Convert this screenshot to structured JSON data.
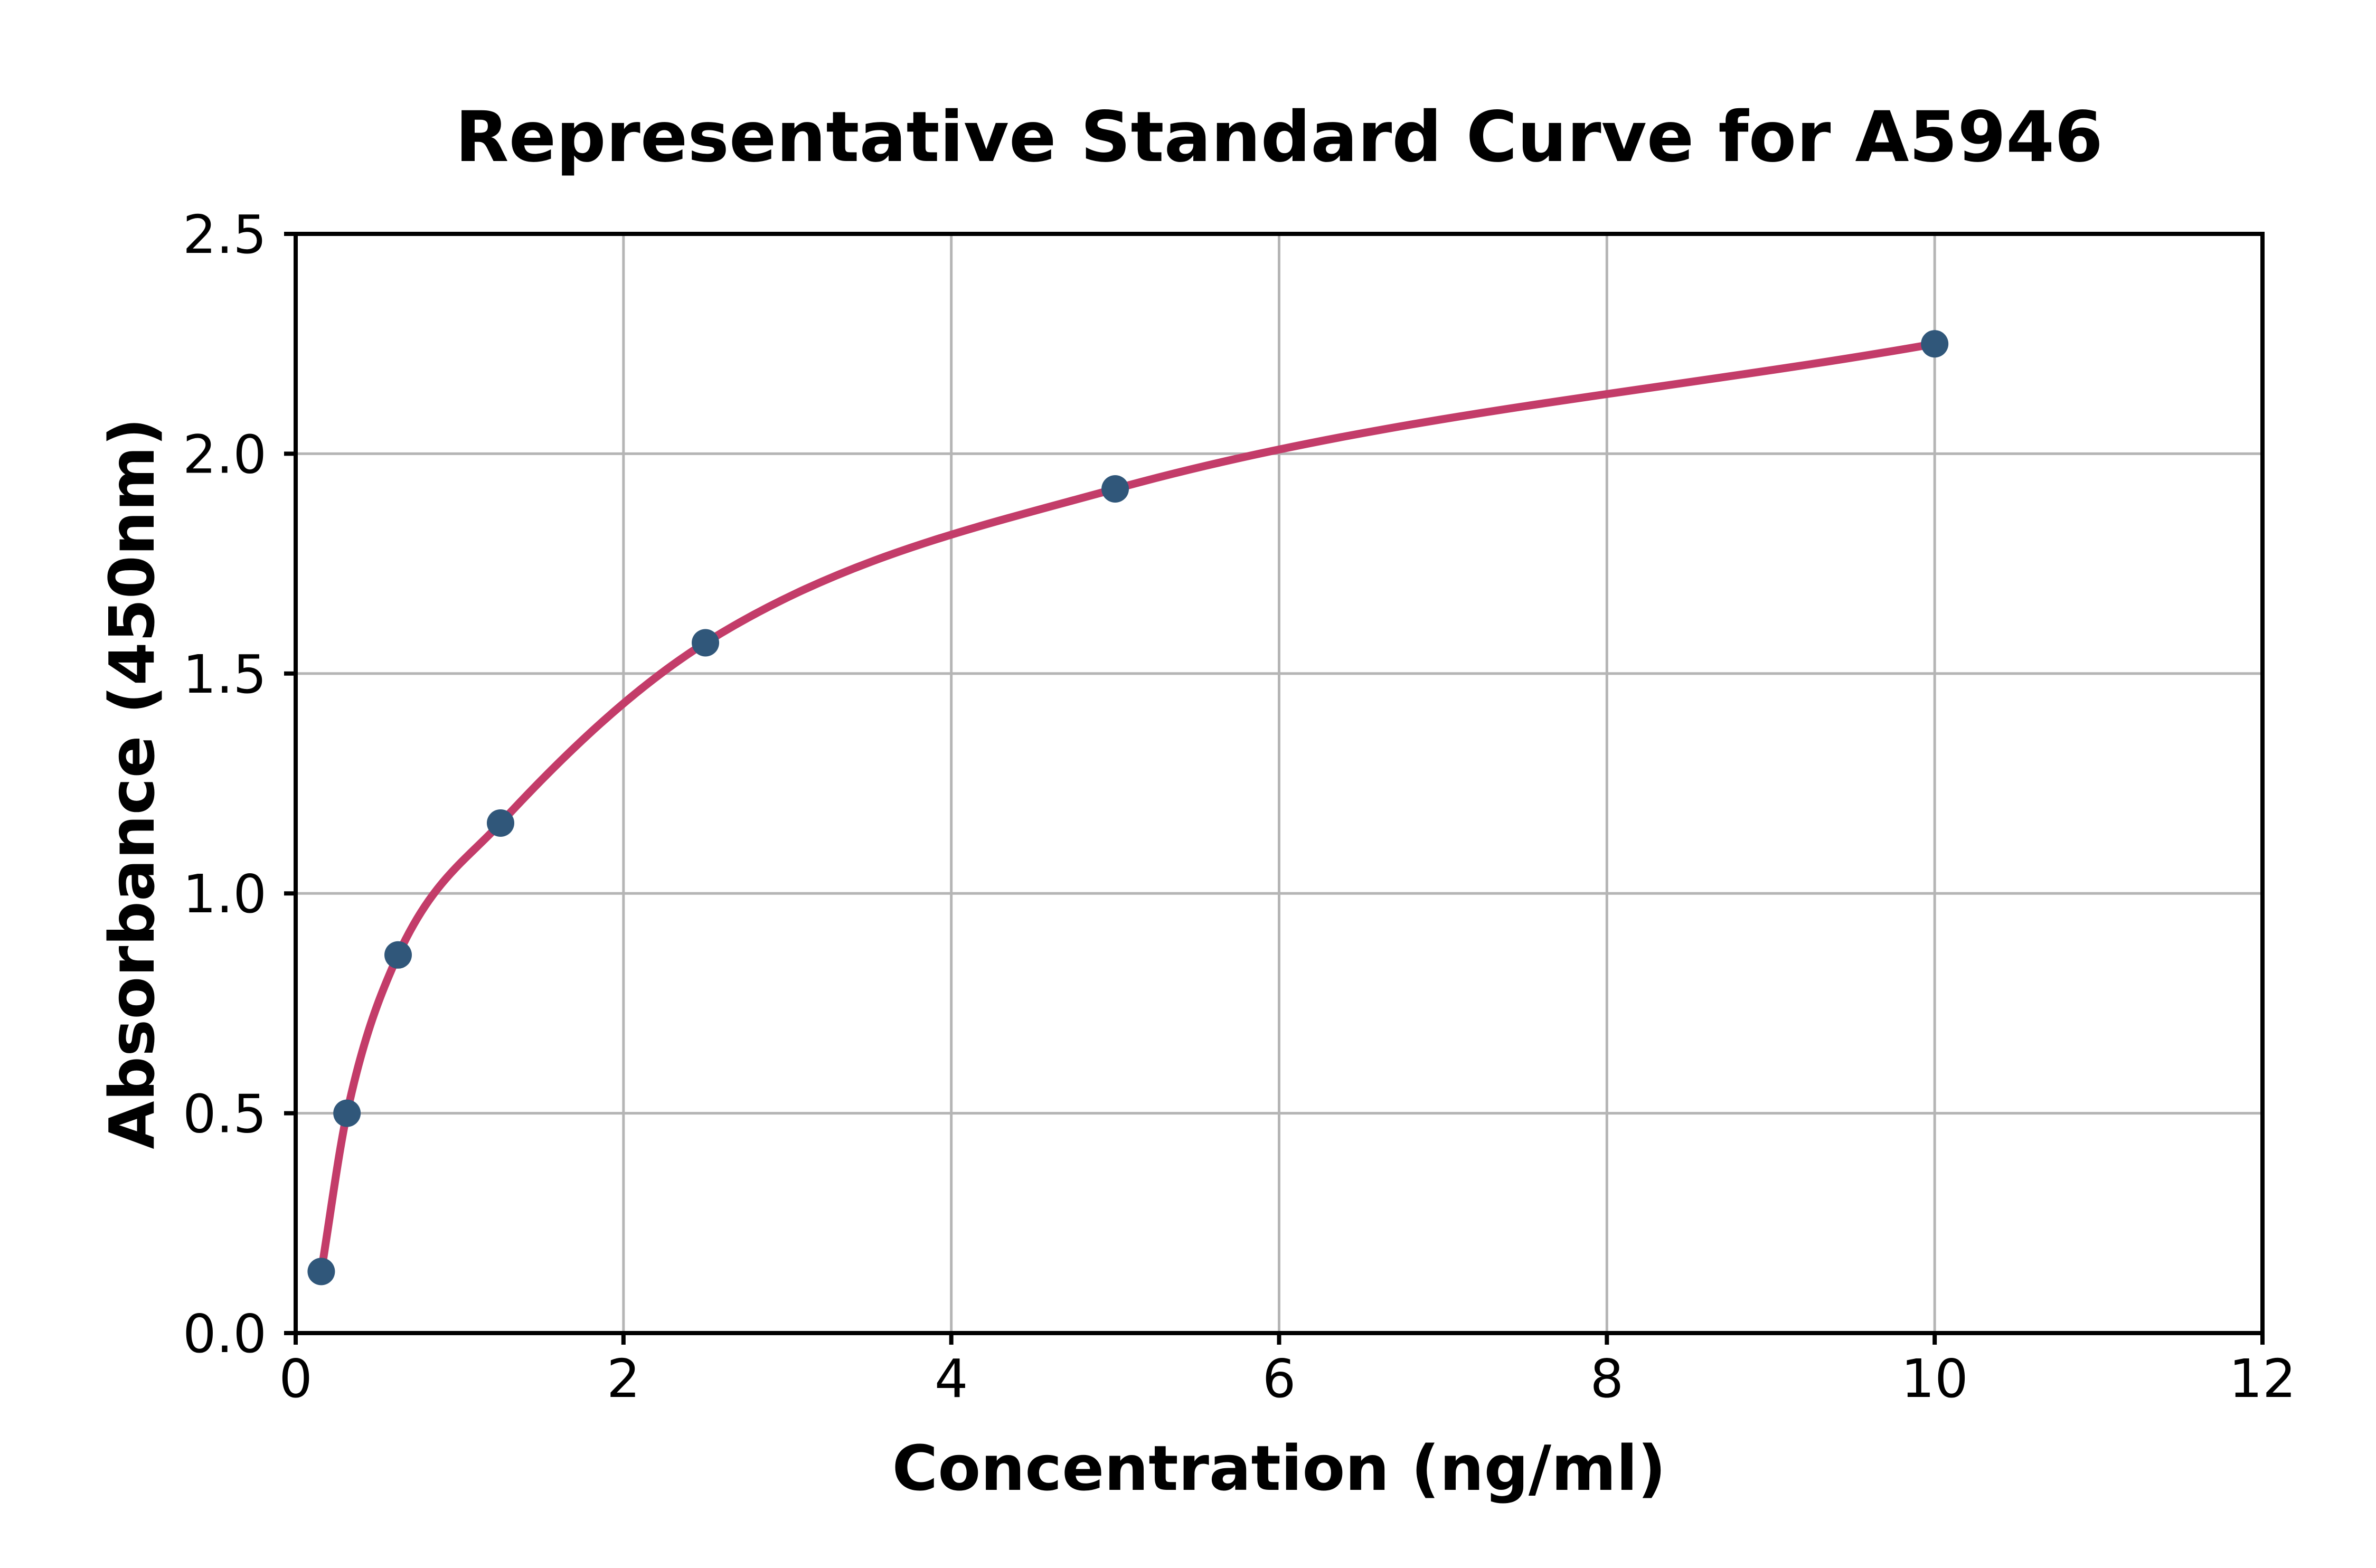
{
  "chart_data": {
    "type": "scatter",
    "title": "Representative Standard Curve for A5946",
    "xlabel": "Concentration (ng/ml)",
    "ylabel": "Absorbance (450nm)",
    "xlim": [
      0,
      12
    ],
    "ylim": [
      0,
      2.5
    ],
    "x_ticks": [
      0,
      2,
      4,
      6,
      8,
      10,
      12
    ],
    "x_tick_labels": [
      "0",
      "2",
      "4",
      "6",
      "8",
      "10",
      "12"
    ],
    "y_ticks": [
      0,
      0.5,
      1,
      1.5,
      2,
      2.5
    ],
    "y_tick_labels": [
      "0.0",
      "0.5",
      "1.0",
      "1.5",
      "2.0",
      "2.5"
    ],
    "grid": "on",
    "legend_position": "none",
    "series": [
      {
        "name": "standard-points",
        "type": "scatter",
        "color": "#30577a",
        "x": [
          0.156,
          0.313,
          0.625,
          1.25,
          2.5,
          5,
          10
        ],
        "y": [
          0.14,
          0.5,
          0.86,
          1.16,
          1.57,
          1.92,
          2.25
        ]
      },
      {
        "name": "fitted-curve",
        "type": "line",
        "interpolation": "smooth",
        "color": "#c33c69",
        "x": [
          0.156,
          0.313,
          0.625,
          1.25,
          2.5,
          5,
          10
        ],
        "y": [
          0.14,
          0.5,
          0.86,
          1.16,
          1.57,
          1.92,
          2.25
        ]
      }
    ],
    "colors": {
      "background": "#ffffff",
      "grid": "#b5b5b5",
      "axis": "#000000",
      "marker": "#30577a",
      "curve": "#c33c69"
    }
  }
}
